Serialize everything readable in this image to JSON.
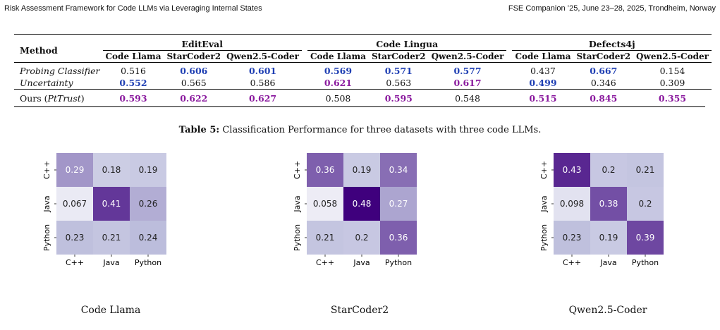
{
  "header": {
    "left": "Risk Assessment Framework for Code LLMs via Leveraging Internal States",
    "right": "FSE Companion ’25, June 23–28, 2025, Trondheim, Norway"
  },
  "table": {
    "method_label": "Method",
    "groups": [
      "EditEval",
      "Code Lingua",
      "Defects4j"
    ],
    "models": [
      "Code Llama",
      "StarCoder2",
      "Qwen2.5-Coder"
    ],
    "rows": [
      {
        "method": "Probing Classifier",
        "italic": true,
        "cells": [
          [
            "0.516",
            ""
          ],
          [
            "0.606",
            "blue"
          ],
          [
            "0.601",
            "blue"
          ],
          [
            "0.569",
            "blue"
          ],
          [
            "0.571",
            "blue"
          ],
          [
            "0.577",
            "blue"
          ],
          [
            "0.437",
            ""
          ],
          [
            "0.667",
            "blue"
          ],
          [
            "0.154",
            ""
          ]
        ]
      },
      {
        "method": "Uncertainty",
        "italic": true,
        "cells": [
          [
            "0.552",
            "blue"
          ],
          [
            "0.565",
            ""
          ],
          [
            "0.586",
            ""
          ],
          [
            "0.621",
            "purple"
          ],
          [
            "0.563",
            ""
          ],
          [
            "0.617",
            "purple"
          ],
          [
            "0.499",
            "blue"
          ],
          [
            "0.346",
            ""
          ],
          [
            "0.309",
            ""
          ]
        ]
      },
      {
        "method_prefix": "Ours (",
        "method_italic": "PtTrust",
        "method_suffix": ")",
        "cells": [
          [
            "0.593",
            "purple"
          ],
          [
            "0.622",
            "purple"
          ],
          [
            "0.627",
            "purple"
          ],
          [
            "0.508",
            ""
          ],
          [
            "0.595",
            "purple"
          ],
          [
            "0.548",
            ""
          ],
          [
            "0.515",
            "purple"
          ],
          [
            "0.845",
            "purple"
          ],
          [
            "0.355",
            "purple"
          ]
        ]
      }
    ]
  },
  "caption": {
    "prefix": "Table 5:",
    "text": " Classification Performance for three datasets with three code LLMs."
  },
  "chart_data": [
    {
      "type": "heatmap",
      "title": "Code Llama",
      "x": [
        "C++",
        "Java",
        "Python"
      ],
      "y": [
        "C++",
        "Java",
        "Python"
      ],
      "values": [
        [
          0.29,
          0.18,
          0.19
        ],
        [
          0.067,
          0.41,
          0.26
        ],
        [
          0.23,
          0.21,
          0.24
        ]
      ]
    },
    {
      "type": "heatmap",
      "title": "StarCoder2",
      "x": [
        "C++",
        "Java",
        "Python"
      ],
      "y": [
        "C++",
        "Java",
        "Python"
      ],
      "values": [
        [
          0.36,
          0.19,
          0.34
        ],
        [
          0.058,
          0.48,
          0.27
        ],
        [
          0.21,
          0.2,
          0.36
        ]
      ]
    },
    {
      "type": "heatmap",
      "title": "Qwen2.5-Coder",
      "x": [
        "C++",
        "Java",
        "Python"
      ],
      "y": [
        "C++",
        "Java",
        "Python"
      ],
      "values": [
        [
          0.43,
          0.2,
          0.21
        ],
        [
          0.098,
          0.38,
          0.2
        ],
        [
          0.23,
          0.19,
          0.39
        ]
      ]
    }
  ]
}
